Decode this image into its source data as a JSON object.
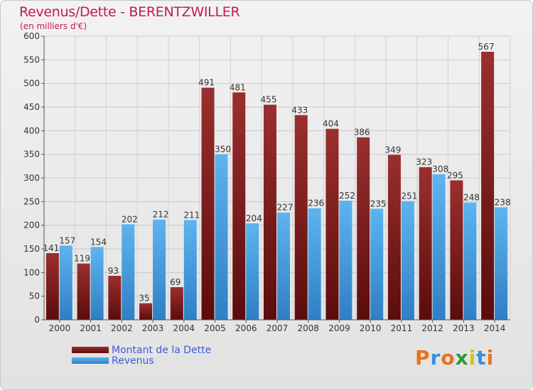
{
  "title": "Revenus/Dette - BERENTZWILLER",
  "subtitle": "(en milliers d'€)",
  "brand": {
    "letters": [
      "P",
      "r",
      "o",
      "x",
      "i",
      "t",
      "i"
    ],
    "colors": [
      "#e8731c",
      "#3a8ddc",
      "#e8731c",
      "#2e9a3a",
      "#d8c21a",
      "#3a8ddc",
      "#e8731c"
    ]
  },
  "chart_data": {
    "type": "bar",
    "categories": [
      "2000",
      "2001",
      "2002",
      "2003",
      "2004",
      "2005",
      "2006",
      "2007",
      "2008",
      "2009",
      "2010",
      "2011",
      "2012",
      "2013",
      "2014"
    ],
    "series": [
      {
        "name": "Montant de la Dette",
        "color": "#7a1c1c",
        "values": [
          141,
          119,
          93,
          35,
          69,
          491,
          481,
          455,
          433,
          404,
          386,
          349,
          323,
          295,
          567
        ]
      },
      {
        "name": "Revenus",
        "color": "#4aa3e6",
        "values": [
          157,
          154,
          202,
          212,
          211,
          350,
          204,
          227,
          236,
          252,
          235,
          251,
          308,
          248,
          238
        ]
      }
    ],
    "ylim": [
      0,
      600
    ],
    "yticks": [
      0,
      50,
      100,
      150,
      200,
      250,
      300,
      350,
      400,
      450,
      500,
      550,
      600
    ],
    "grid": true,
    "legend": "bottom-left"
  }
}
